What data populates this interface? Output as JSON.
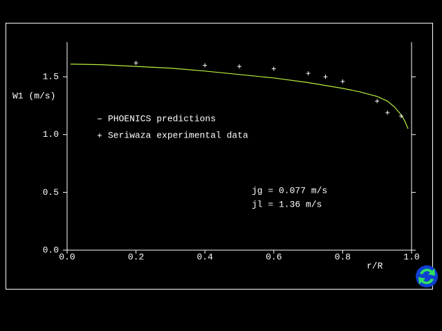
{
  "chart_data": {
    "type": "line",
    "y_label": "W1 (m/s)",
    "x_label": "r/R",
    "xlim": [
      0,
      1
    ],
    "ylim": [
      0,
      1.8
    ],
    "xticks": [
      {
        "value": 0,
        "label": "0.0"
      },
      0.2,
      0.4,
      0.6,
      0.8,
      {
        "value": 1,
        "label": "1.0"
      }
    ],
    "yticks": [
      {
        "value": 0,
        "label": "0.0"
      },
      0.5,
      {
        "value": 1,
        "label": "1.0"
      },
      1.5
    ],
    "grid": false,
    "series": [
      {
        "name": "PHOENICS predictions",
        "type": "line",
        "color": "#b8f040",
        "x": [
          0.01,
          0.1,
          0.2,
          0.3,
          0.4,
          0.5,
          0.6,
          0.7,
          0.8,
          0.85,
          0.9,
          0.93,
          0.95,
          0.97,
          0.98,
          0.99
        ],
        "values": [
          1.61,
          1.605,
          1.59,
          1.575,
          1.55,
          1.52,
          1.49,
          1.45,
          1.4,
          1.37,
          1.33,
          1.29,
          1.24,
          1.17,
          1.12,
          1.05
        ]
      },
      {
        "name": "Seriwaza experimental data",
        "type": "scatter",
        "color": "#ffffff",
        "x": [
          0.2,
          0.4,
          0.5,
          0.6,
          0.7,
          0.75,
          0.8,
          0.9,
          0.93,
          0.97
        ],
        "values": [
          1.62,
          1.6,
          1.59,
          1.57,
          1.53,
          1.5,
          1.46,
          1.29,
          1.19,
          1.16
        ]
      }
    ],
    "annotations": [
      "jg = 0.077 m/s",
      "jl = 1.36 m/s"
    ]
  }
}
